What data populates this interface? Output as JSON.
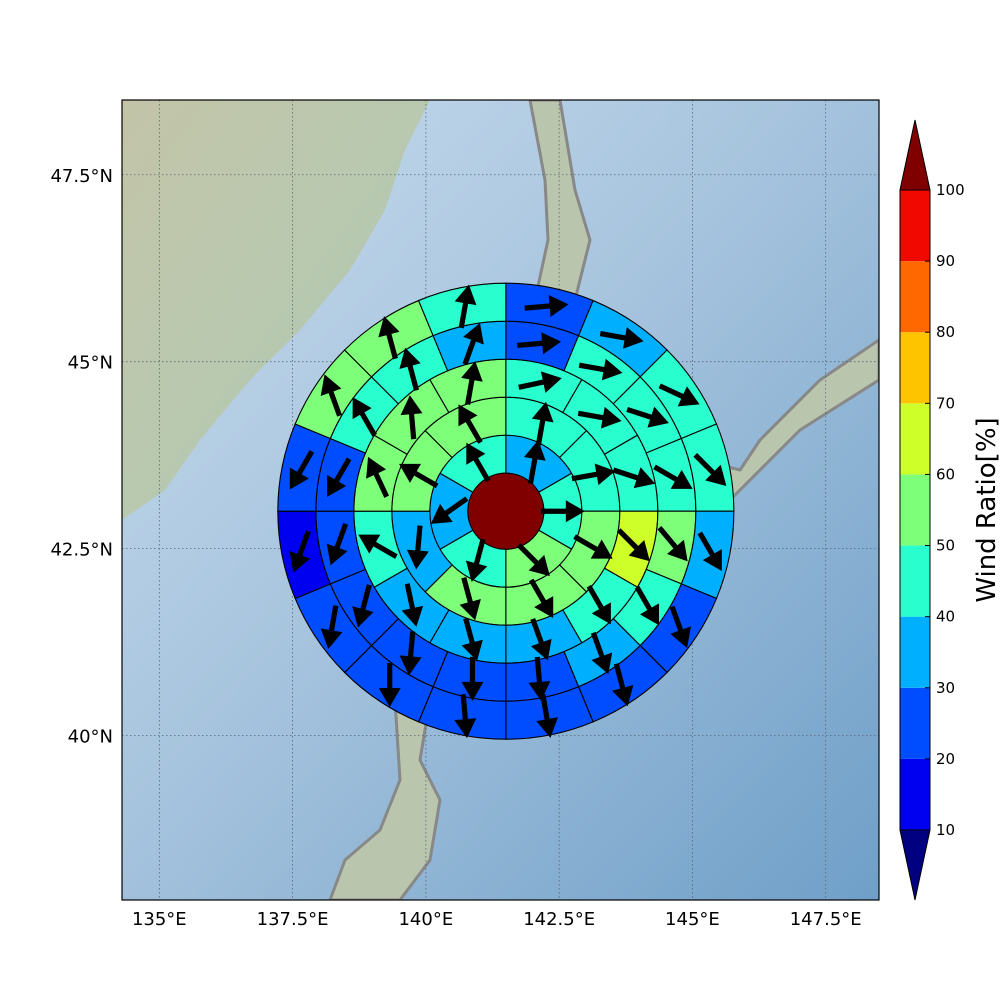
{
  "chart_data": {
    "type": "heatmap",
    "title": "",
    "map": {
      "lon_range": [
        134.3,
        148.5
      ],
      "lat_range": [
        37.8,
        48.5
      ],
      "lon_ticks": [
        "135°E",
        "137.5°E",
        "140°E",
        "142.5°E",
        "145°E",
        "147.5°E"
      ],
      "lat_ticks": [
        "40°N",
        "42.5°N",
        "45°N",
        "47.5°N"
      ],
      "grid": true,
      "background": "shaded-relief with coastlines"
    },
    "polar_grid": {
      "center": {
        "lon": 141.5,
        "lat": 43.0
      },
      "rings_km": [
        [
          50,
          100
        ],
        [
          100,
          150
        ],
        [
          150,
          200
        ],
        [
          200,
          250
        ],
        [
          250,
          300
        ]
      ],
      "sector_counts": [
        6,
        8,
        12,
        16,
        16
      ],
      "first_sector_starts_at": "north, clockwise",
      "center_cell_ratio": 100
    },
    "cells": [
      {
        "ratio": [
          35,
          45,
          50,
          45,
          35,
          45
        ],
        "direction_deg": [
          10,
          90,
          135,
          195,
          235,
          330
        ]
      },
      {
        "ratio": [
          45,
          45,
          55,
          55,
          55,
          35,
          55,
          55
        ],
        "direction_deg": [
          10,
          80,
          120,
          150,
          165,
          185,
          300,
          330
        ]
      },
      {
        "ratio": [
          45,
          45,
          45,
          65,
          45,
          30,
          35,
          35,
          45,
          55,
          55,
          55
        ],
        "direction_deg": [
          78,
          100,
          108,
          135,
          150,
          160,
          165,
          168,
          300,
          335,
          355,
          10
        ]
      },
      {
        "ratio": [
          25,
          45,
          45,
          45,
          55,
          45,
          30,
          25,
          25,
          25,
          25,
          25,
          25,
          45,
          45,
          35
        ],
        "direction_deg": [
          85,
          100,
          108,
          120,
          140,
          150,
          160,
          175,
          180,
          185,
          195,
          200,
          210,
          330,
          345,
          20
        ]
      },
      {
        "ratio": [
          25,
          35,
          45,
          45,
          35,
          25,
          25,
          25,
          25,
          25,
          25,
          15,
          25,
          55,
          55,
          45
        ],
        "direction_deg": [
          85,
          100,
          115,
          135,
          150,
          160,
          165,
          170,
          175,
          180,
          190,
          200,
          210,
          340,
          345,
          10
        ]
      }
    ],
    "colorbar": {
      "label": "Wind Ratio[%]",
      "ticks": [
        10,
        20,
        30,
        40,
        50,
        60,
        70,
        80,
        90,
        100
      ],
      "levels": [
        0,
        10,
        20,
        30,
        40,
        50,
        60,
        70,
        80,
        90,
        100,
        110
      ],
      "colors": [
        "#000080",
        "#0000f1",
        "#004cff",
        "#00b0ff",
        "#29ffce",
        "#7dff7a",
        "#ceff29",
        "#ffc400",
        "#ff6800",
        "#f10800",
        "#800000"
      ],
      "extend": "both"
    }
  }
}
